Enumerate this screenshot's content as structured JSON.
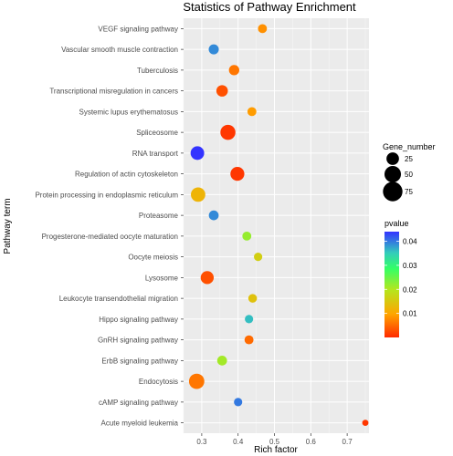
{
  "chart_data": {
    "type": "scatter",
    "title": "Statistics of Pathway Enrichment",
    "xlabel": "Rich factor",
    "ylabel": "Pathway term",
    "xlim": [
      0.25,
      0.76
    ],
    "xticks": [
      "0.3",
      "0.4",
      "0.5",
      "0.6",
      "0.7"
    ],
    "xtick_values": [
      0.3,
      0.4,
      0.5,
      0.6,
      0.7
    ],
    "grid": true,
    "points": [
      {
        "term": "VEGF signaling pathway",
        "rich_factor": 0.467,
        "gene_number": 10,
        "pvalue": 0.008
      },
      {
        "term": "Vascular smooth muscle contraction",
        "rich_factor": 0.333,
        "gene_number": 14,
        "pvalue": 0.039
      },
      {
        "term": "Tuberculosis",
        "rich_factor": 0.389,
        "gene_number": 15,
        "pvalue": 0.006
      },
      {
        "term": "Transcriptional misregulation in cancers",
        "rich_factor": 0.356,
        "gene_number": 20,
        "pvalue": 0.003
      },
      {
        "term": "Systemic lupus erythematosus",
        "rich_factor": 0.438,
        "gene_number": 10,
        "pvalue": 0.009
      },
      {
        "term": "Spliceosome",
        "rich_factor": 0.372,
        "gene_number": 40,
        "pvalue": 0.001
      },
      {
        "term": "RNA transport",
        "rich_factor": 0.288,
        "gene_number": 31,
        "pvalue": 0.044
      },
      {
        "term": "Regulation of actin cytoskeleton",
        "rich_factor": 0.398,
        "gene_number": 33,
        "pvalue": 0.001
      },
      {
        "term": "Protein processing in endoplasmic reticulum",
        "rich_factor": 0.29,
        "gene_number": 36,
        "pvalue": 0.012
      },
      {
        "term": "Proteasome",
        "rich_factor": 0.333,
        "gene_number": 13,
        "pvalue": 0.039
      },
      {
        "term": "Progesterone-mediated oocyte maturation",
        "rich_factor": 0.424,
        "gene_number": 10,
        "pvalue": 0.022
      },
      {
        "term": "Oocyte meiosis",
        "rich_factor": 0.455,
        "gene_number": 8,
        "pvalue": 0.016
      },
      {
        "term": "Lysosome",
        "rich_factor": 0.315,
        "gene_number": 28,
        "pvalue": 0.003
      },
      {
        "term": "Leukocyte transendothelial migration",
        "rich_factor": 0.44,
        "gene_number": 9,
        "pvalue": 0.014
      },
      {
        "term": "Hippo signaling pathway",
        "rich_factor": 0.43,
        "gene_number": 8,
        "pvalue": 0.036
      },
      {
        "term": "GnRH signaling pathway",
        "rich_factor": 0.43,
        "gene_number": 10,
        "pvalue": 0.005
      },
      {
        "term": "ErbB signaling pathway",
        "rich_factor": 0.356,
        "gene_number": 13,
        "pvalue": 0.021
      },
      {
        "term": "Endocytosis",
        "rich_factor": 0.286,
        "gene_number": 42,
        "pvalue": 0.006
      },
      {
        "term": "cAMP signaling pathway",
        "rich_factor": 0.4,
        "gene_number": 8,
        "pvalue": 0.04
      },
      {
        "term": "Acute myeloid leukemia",
        "rich_factor": 0.75,
        "gene_number": 3,
        "pvalue": 0.001
      }
    ],
    "size_legend": {
      "title": "Gene_number",
      "breaks": [
        25,
        50,
        75
      ],
      "labels": [
        "25",
        "50",
        "75"
      ]
    },
    "color_legend": {
      "title": "pvalue",
      "range": [
        0,
        0.044
      ],
      "breaks": [
        0.01,
        0.02,
        0.03,
        0.04
      ],
      "labels": [
        "0.01",
        "0.02",
        "0.03",
        "0.04"
      ],
      "colors": [
        "#ff2a00",
        "#ffa500",
        "#66ff33",
        "#3333ff"
      ]
    },
    "background_color": "#ebebeb",
    "grid_color": "#ffffff"
  }
}
